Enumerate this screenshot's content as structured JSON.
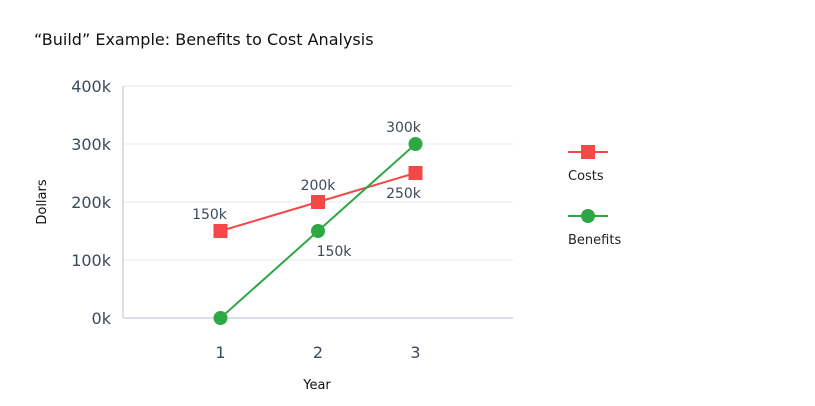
{
  "chart_data": {
    "type": "line",
    "title": "“Build” Example: Benefits to Cost Analysis",
    "xlabel": "Year",
    "ylabel": "Dollars",
    "x": [
      1,
      2,
      3
    ],
    "xlim": [
      0,
      4
    ],
    "ylim": [
      0,
      400000
    ],
    "yticks": [
      0,
      100000,
      200000,
      300000,
      400000
    ],
    "ytick_labels": [
      "0k",
      "100k",
      "200k",
      "300k",
      "400k"
    ],
    "xtick_labels": [
      "1",
      "2",
      "3"
    ],
    "grid": "horizontal",
    "legend_placement": "right",
    "series": [
      {
        "name": "Costs",
        "values": [
          150000,
          200000,
          250000
        ],
        "labels": [
          "150k",
          "200k",
          "250k"
        ],
        "color": "#f44848",
        "marker": "square"
      },
      {
        "name": "Benefits",
        "values": [
          0,
          150000,
          300000
        ],
        "labels": [
          "",
          "150k",
          "300k"
        ],
        "color": "#2ea844",
        "marker": "circle"
      }
    ]
  }
}
